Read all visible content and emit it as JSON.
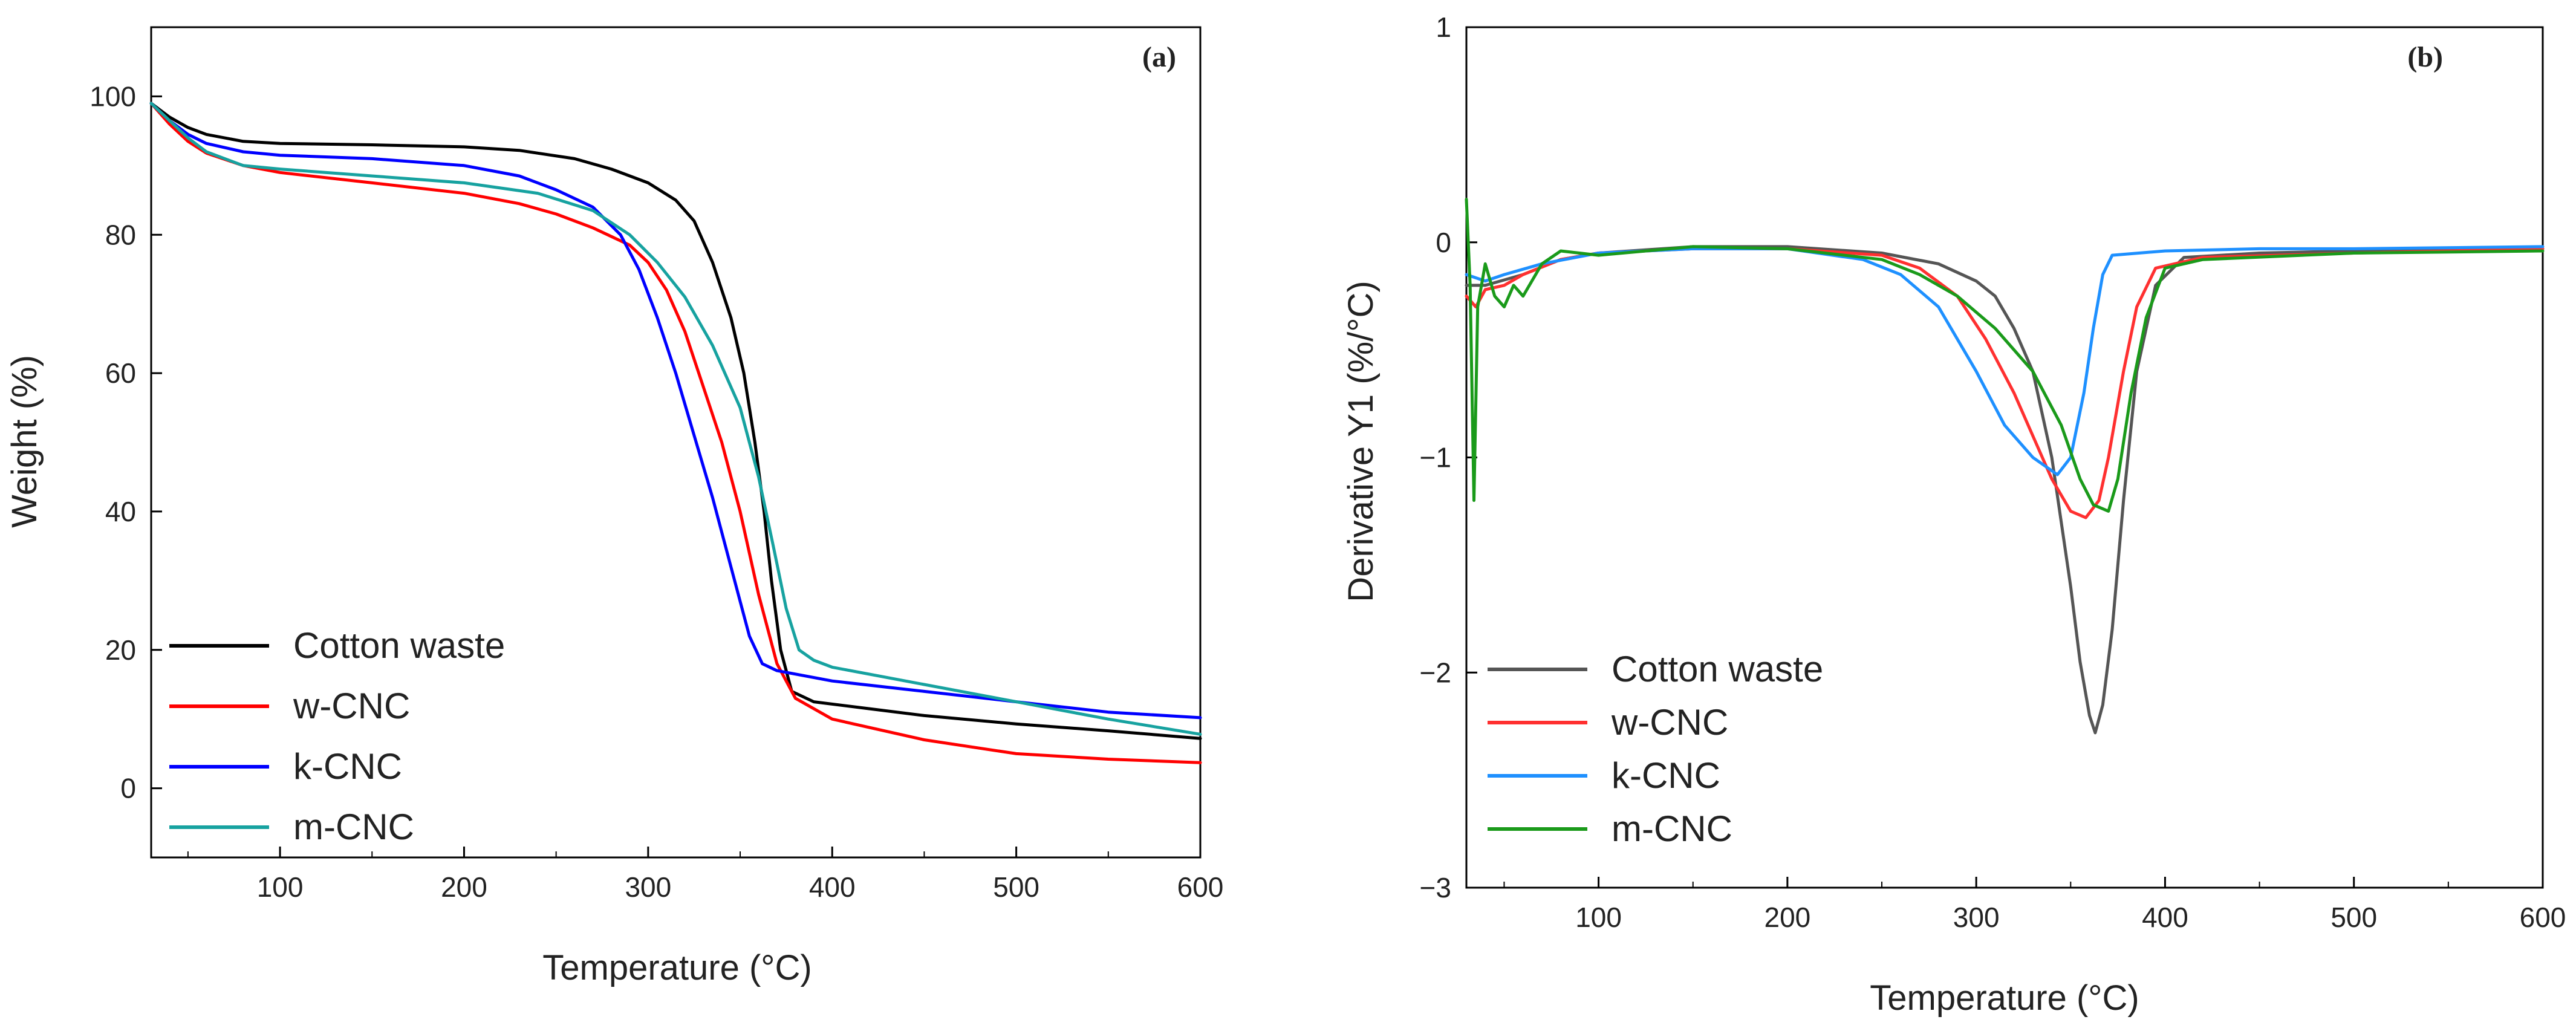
{
  "chart_data": [
    {
      "type": "line",
      "panel_label": "(a)",
      "title": "",
      "xlabel": "Temperature (°C)",
      "ylabel": "Weight (%)",
      "xlim": [
        30,
        600
      ],
      "ylim": [
        -10,
        110
      ],
      "xticks": [
        100,
        200,
        300,
        400,
        500,
        600
      ],
      "yticks": [
        0,
        20,
        40,
        60,
        80,
        100
      ],
      "legend_position": "bottom-left",
      "series": [
        {
          "name": "Cotton waste",
          "color": "#000000",
          "points": [
            [
              30,
              99
            ],
            [
              40,
              97
            ],
            [
              50,
              95.5
            ],
            [
              60,
              94.5
            ],
            [
              80,
              93.5
            ],
            [
              100,
              93.2
            ],
            [
              150,
              93
            ],
            [
              200,
              92.7
            ],
            [
              230,
              92.2
            ],
            [
              260,
              91
            ],
            [
              280,
              89.5
            ],
            [
              300,
              87.5
            ],
            [
              315,
              85
            ],
            [
              325,
              82
            ],
            [
              335,
              76
            ],
            [
              345,
              68
            ],
            [
              352,
              60
            ],
            [
              358,
              50
            ],
            [
              363,
              40
            ],
            [
              367,
              30
            ],
            [
              372,
              20
            ],
            [
              378,
              14
            ],
            [
              390,
              12.5
            ],
            [
              420,
              11.5
            ],
            [
              450,
              10.5
            ],
            [
              500,
              9.3
            ],
            [
              550,
              8.3
            ],
            [
              600,
              7.2
            ]
          ]
        },
        {
          "name": "w-CNC",
          "color": "#ff0000",
          "points": [
            [
              30,
              99
            ],
            [
              40,
              96
            ],
            [
              50,
              93.5
            ],
            [
              60,
              91.8
            ],
            [
              80,
              90
            ],
            [
              100,
              89
            ],
            [
              150,
              87.5
            ],
            [
              200,
              86
            ],
            [
              230,
              84.5
            ],
            [
              250,
              83
            ],
            [
              270,
              81
            ],
            [
              290,
              78.5
            ],
            [
              300,
              76
            ],
            [
              310,
              72
            ],
            [
              320,
              66
            ],
            [
              330,
              58
            ],
            [
              340,
              50
            ],
            [
              350,
              40
            ],
            [
              360,
              28
            ],
            [
              370,
              18
            ],
            [
              380,
              13
            ],
            [
              400,
              10
            ],
            [
              450,
              7
            ],
            [
              500,
              5
            ],
            [
              550,
              4.2
            ],
            [
              600,
              3.7
            ]
          ]
        },
        {
          "name": "k-CNC",
          "color": "#0000ff",
          "points": [
            [
              30,
              99
            ],
            [
              40,
              96.5
            ],
            [
              50,
              94.5
            ],
            [
              60,
              93.2
            ],
            [
              80,
              92
            ],
            [
              100,
              91.5
            ],
            [
              150,
              91
            ],
            [
              200,
              90
            ],
            [
              230,
              88.5
            ],
            [
              250,
              86.5
            ],
            [
              270,
              84
            ],
            [
              285,
              80
            ],
            [
              295,
              75
            ],
            [
              305,
              68
            ],
            [
              315,
              60
            ],
            [
              325,
              51
            ],
            [
              335,
              42
            ],
            [
              345,
              32
            ],
            [
              355,
              22
            ],
            [
              362,
              18
            ],
            [
              370,
              17
            ],
            [
              400,
              15.5
            ],
            [
              450,
              14
            ],
            [
              500,
              12.5
            ],
            [
              550,
              11
            ],
            [
              600,
              10.2
            ]
          ]
        },
        {
          "name": "m-CNC",
          "color": "#17a2a0",
          "points": [
            [
              30,
              99
            ],
            [
              40,
              96.5
            ],
            [
              50,
              94
            ],
            [
              60,
              92
            ],
            [
              80,
              90
            ],
            [
              100,
              89.5
            ],
            [
              150,
              88.5
            ],
            [
              200,
              87.5
            ],
            [
              240,
              86
            ],
            [
              270,
              83.5
            ],
            [
              290,
              80
            ],
            [
              305,
              76
            ],
            [
              320,
              71
            ],
            [
              335,
              64
            ],
            [
              350,
              55
            ],
            [
              360,
              45
            ],
            [
              368,
              35
            ],
            [
              375,
              26
            ],
            [
              382,
              20
            ],
            [
              390,
              18.5
            ],
            [
              400,
              17.5
            ],
            [
              450,
              15
            ],
            [
              500,
              12.5
            ],
            [
              550,
              10
            ],
            [
              600,
              7.8
            ]
          ]
        }
      ]
    },
    {
      "type": "line",
      "panel_label": "(b)",
      "title": "",
      "xlabel": "Temperature (°C)",
      "ylabel": "Derivative Y1 (%/°C)",
      "xlim": [
        30,
        600
      ],
      "ylim": [
        -3,
        1
      ],
      "xticks": [
        100,
        200,
        300,
        400,
        500,
        600
      ],
      "yticks": [
        1,
        0,
        -1,
        -2,
        -3
      ],
      "ytick_labels": [
        "1",
        "0",
        "−1",
        "−2",
        "−3"
      ],
      "legend_position": "bottom-left",
      "series": [
        {
          "name": "Cotton waste",
          "color": "#555555",
          "points": [
            [
              30,
              -0.2
            ],
            [
              40,
              -0.2
            ],
            [
              60,
              -0.15
            ],
            [
              80,
              -0.08
            ],
            [
              100,
              -0.05
            ],
            [
              150,
              -0.02
            ],
            [
              200,
              -0.02
            ],
            [
              250,
              -0.05
            ],
            [
              280,
              -0.1
            ],
            [
              300,
              -0.18
            ],
            [
              310,
              -0.25
            ],
            [
              320,
              -0.4
            ],
            [
              330,
              -0.6
            ],
            [
              340,
              -1.0
            ],
            [
              345,
              -1.3
            ],
            [
              350,
              -1.6
            ],
            [
              355,
              -1.95
            ],
            [
              360,
              -2.2
            ],
            [
              363,
              -2.28
            ],
            [
              367,
              -2.15
            ],
            [
              372,
              -1.8
            ],
            [
              378,
              -1.2
            ],
            [
              385,
              -0.6
            ],
            [
              395,
              -0.2
            ],
            [
              410,
              -0.07
            ],
            [
              450,
              -0.05
            ],
            [
              500,
              -0.04
            ],
            [
              600,
              -0.03
            ]
          ]
        },
        {
          "name": "w-CNC",
          "color": "#ff3030",
          "points": [
            [
              30,
              -0.25
            ],
            [
              35,
              -0.3
            ],
            [
              40,
              -0.22
            ],
            [
              50,
              -0.2
            ],
            [
              60,
              -0.15
            ],
            [
              80,
              -0.08
            ],
            [
              100,
              -0.05
            ],
            [
              150,
              -0.03
            ],
            [
              200,
              -0.03
            ],
            [
              250,
              -0.06
            ],
            [
              270,
              -0.12
            ],
            [
              290,
              -0.25
            ],
            [
              305,
              -0.45
            ],
            [
              320,
              -0.7
            ],
            [
              330,
              -0.9
            ],
            [
              340,
              -1.1
            ],
            [
              350,
              -1.25
            ],
            [
              358,
              -1.28
            ],
            [
              365,
              -1.2
            ],
            [
              370,
              -1.0
            ],
            [
              378,
              -0.6
            ],
            [
              385,
              -0.3
            ],
            [
              395,
              -0.12
            ],
            [
              420,
              -0.07
            ],
            [
              500,
              -0.05
            ],
            [
              600,
              -0.03
            ]
          ]
        },
        {
          "name": "k-CNC",
          "color": "#1e90ff",
          "points": [
            [
              30,
              -0.15
            ],
            [
              40,
              -0.18
            ],
            [
              50,
              -0.15
            ],
            [
              70,
              -0.1
            ],
            [
              100,
              -0.05
            ],
            [
              150,
              -0.03
            ],
            [
              200,
              -0.03
            ],
            [
              240,
              -0.08
            ],
            [
              260,
              -0.15
            ],
            [
              280,
              -0.3
            ],
            [
              300,
              -0.6
            ],
            [
              315,
              -0.85
            ],
            [
              330,
              -1.0
            ],
            [
              343,
              -1.08
            ],
            [
              350,
              -1.0
            ],
            [
              357,
              -0.7
            ],
            [
              362,
              -0.4
            ],
            [
              367,
              -0.15
            ],
            [
              372,
              -0.06
            ],
            [
              400,
              -0.04
            ],
            [
              450,
              -0.03
            ],
            [
              500,
              -0.03
            ],
            [
              600,
              -0.02
            ]
          ]
        },
        {
          "name": "m-CNC",
          "color": "#1a9a1a",
          "points": [
            [
              30,
              0.2
            ],
            [
              32,
              -0.2
            ],
            [
              34,
              -1.2
            ],
            [
              36,
              -0.3
            ],
            [
              40,
              -0.1
            ],
            [
              45,
              -0.25
            ],
            [
              50,
              -0.3
            ],
            [
              55,
              -0.2
            ],
            [
              60,
              -0.25
            ],
            [
              70,
              -0.1
            ],
            [
              80,
              -0.04
            ],
            [
              100,
              -0.06
            ],
            [
              150,
              -0.02
            ],
            [
              200,
              -0.03
            ],
            [
              250,
              -0.08
            ],
            [
              270,
              -0.15
            ],
            [
              290,
              -0.25
            ],
            [
              310,
              -0.4
            ],
            [
              330,
              -0.6
            ],
            [
              345,
              -0.85
            ],
            [
              355,
              -1.1
            ],
            [
              362,
              -1.22
            ],
            [
              370,
              -1.25
            ],
            [
              375,
              -1.1
            ],
            [
              382,
              -0.7
            ],
            [
              390,
              -0.35
            ],
            [
              400,
              -0.12
            ],
            [
              420,
              -0.08
            ],
            [
              500,
              -0.05
            ],
            [
              600,
              -0.04
            ]
          ]
        }
      ]
    }
  ]
}
